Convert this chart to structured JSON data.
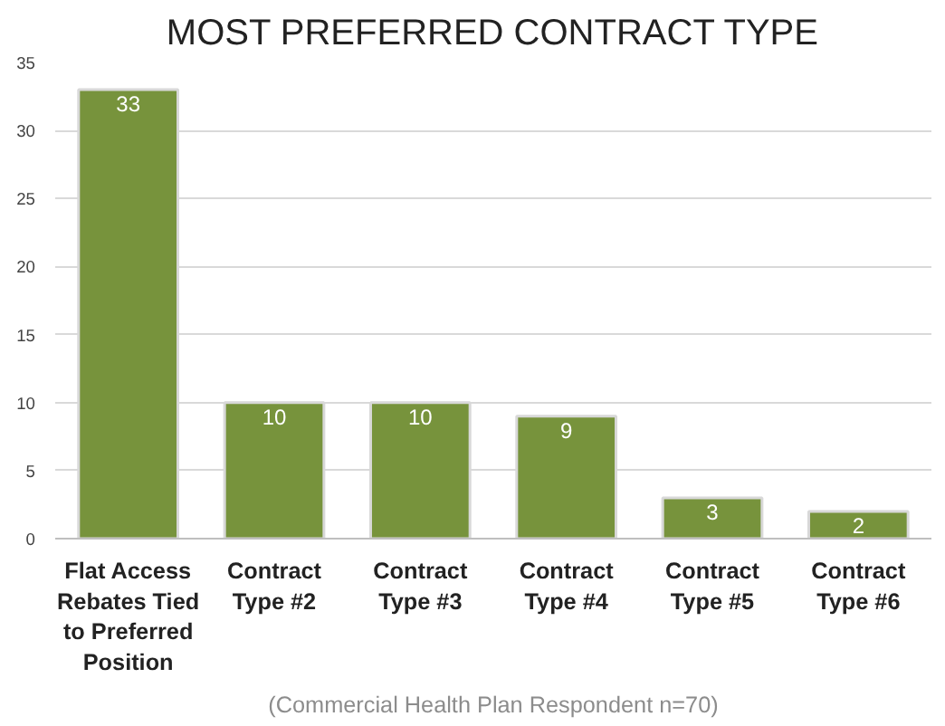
{
  "chart_data": {
    "type": "bar",
    "title": "MOST PREFERRED CONTRACT TYPE",
    "categories": [
      "Flat Access Rebates Tied to Preferred Position",
      "Contract Type #2",
      "Contract Type #3",
      "Contract Type #4",
      "Contract Type #5",
      "Contract Type #6"
    ],
    "values": [
      33,
      10,
      10,
      9,
      3,
      2
    ],
    "color": "#77933c",
    "ylim": [
      0,
      35
    ],
    "yticks": [
      0,
      5,
      10,
      15,
      20,
      25,
      30,
      35
    ],
    "grid": "y",
    "data_labels": true,
    "annotations": [
      "(Commercial Health Plan Respondent n=70)"
    ]
  }
}
